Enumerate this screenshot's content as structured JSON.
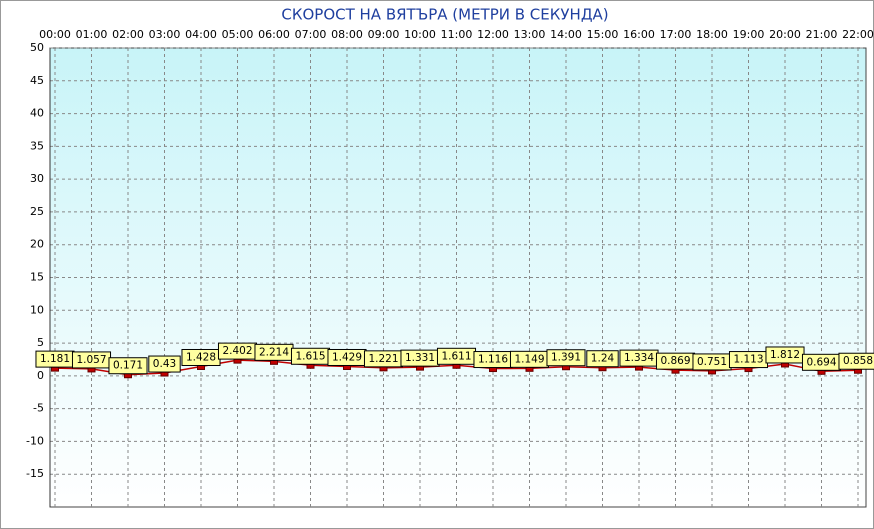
{
  "chart_data": {
    "type": "line",
    "title": "СКОРОСТ НА ВЯТЪРА (МЕТРИ В СЕКУНДА)",
    "categories": [
      "00:00",
      "01:00",
      "02:00",
      "03:00",
      "04:00",
      "05:00",
      "06:00",
      "07:00",
      "08:00",
      "09:00",
      "10:00",
      "11:00",
      "12:00",
      "13:00",
      "14:00",
      "15:00",
      "16:00",
      "17:00",
      "18:00",
      "19:00",
      "20:00",
      "21:00",
      "22:00"
    ],
    "series": [
      {
        "color": "#c00000",
        "values": [
          1.181,
          1.057,
          0.171,
          0.43,
          1.428,
          2.402,
          2.214,
          1.615,
          1.429,
          1.221,
          1.331,
          1.611,
          1.116,
          1.149,
          1.391,
          1.24,
          1.334,
          0.869,
          0.751,
          1.113,
          1.812,
          0.694,
          0.858
        ]
      }
    ],
    "ylim": [
      -20,
      50
    ],
    "yticks": [
      50,
      45,
      40,
      35,
      30,
      25,
      20,
      15,
      10,
      5,
      0,
      -5,
      -10,
      -15
    ],
    "grid": true
  }
}
